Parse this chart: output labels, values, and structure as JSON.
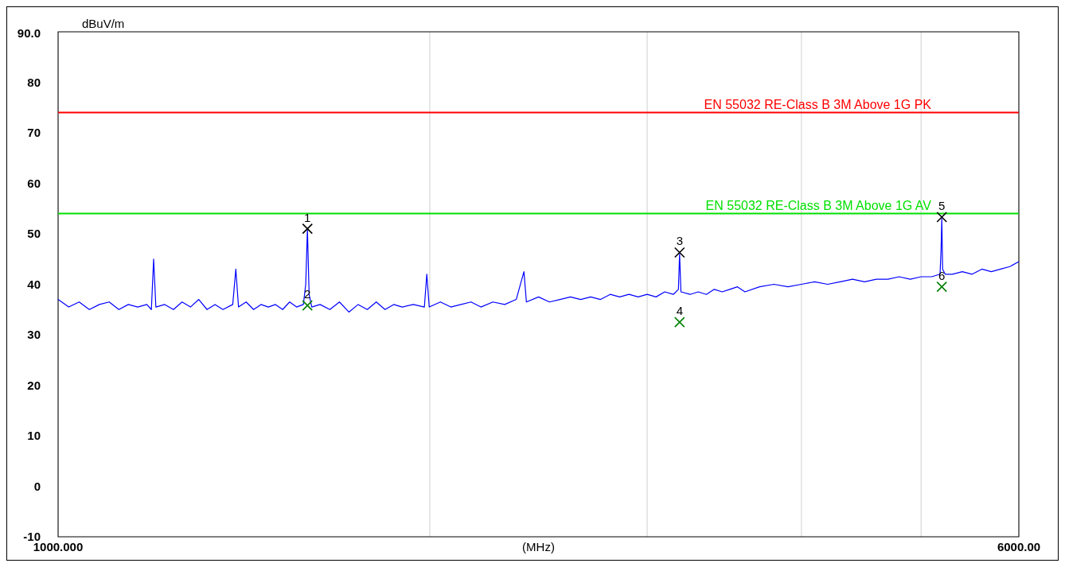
{
  "chart_data": {
    "type": "line",
    "xlabel": "(MHz)",
    "ylabel": "dBuV/m",
    "log": "x",
    "grid": "x",
    "xlim": [
      1000,
      6000
    ],
    "xticks": [
      {
        "value": 1000,
        "label": "1000.000"
      },
      {
        "value": 2000,
        "label": null
      },
      {
        "value": 3000,
        "label": null
      },
      {
        "value": 4000,
        "label": null
      },
      {
        "value": 5000,
        "label": null
      },
      {
        "value": 6000,
        "label": "6000.00"
      }
    ],
    "ylim": [
      -10,
      90
    ],
    "yticks": [
      -10,
      0,
      10,
      20,
      30,
      40,
      50,
      60,
      70,
      80,
      {
        "value": 90,
        "label": "90.0"
      }
    ],
    "series": [
      {
        "color": "#0000ff",
        "marker": "none",
        "x": [
          1000,
          1020,
          1040,
          1060,
          1080,
          1100,
          1120,
          1140,
          1160,
          1180,
          1190,
          1195,
          1200,
          1220,
          1240,
          1260,
          1280,
          1300,
          1320,
          1340,
          1360,
          1385,
          1393,
          1400,
          1420,
          1440,
          1460,
          1480,
          1500,
          1520,
          1540,
          1560,
          1580,
          1587,
          1592,
          1597,
          1605,
          1630,
          1660,
          1690,
          1720,
          1750,
          1780,
          1810,
          1840,
          1870,
          1900,
          1940,
          1980,
          1989,
          1998,
          2040,
          2080,
          2120,
          2160,
          2200,
          2250,
          2300,
          2350,
          2384,
          2395,
          2450,
          2500,
          2550,
          2600,
          2650,
          2700,
          2750,
          2800,
          2850,
          2900,
          2950,
          3000,
          3050,
          3100,
          3150,
          3180,
          3187,
          3195,
          3250,
          3300,
          3350,
          3400,
          3450,
          3500,
          3550,
          3600,
          3700,
          3800,
          3900,
          4000,
          4100,
          4200,
          4300,
          4400,
          4500,
          4600,
          4700,
          4800,
          4900,
          5000,
          5100,
          5180,
          5190,
          5197,
          5205,
          5230,
          5300,
          5400,
          5500,
          5600,
          5700,
          5800,
          5900,
          6000
        ],
        "values": [
          37,
          35.5,
          36.5,
          35,
          36,
          36.5,
          35,
          36,
          35.5,
          36,
          35,
          45,
          35.5,
          36,
          35,
          36.5,
          35.5,
          37,
          35,
          36,
          35,
          36,
          43,
          35.5,
          36.5,
          35,
          36,
          35.5,
          36,
          35,
          36.5,
          35.5,
          36,
          40,
          51,
          38,
          35.5,
          36,
          35,
          36.5,
          34.5,
          36,
          35,
          36.5,
          35,
          36,
          35.5,
          36,
          35.5,
          42,
          35.5,
          36.5,
          35.5,
          36,
          36.5,
          35.5,
          36.5,
          36,
          37,
          42.5,
          36.5,
          37.5,
          36.5,
          37,
          37.5,
          37,
          37.5,
          37,
          38,
          37.5,
          38,
          37.5,
          38,
          37.5,
          38.5,
          38,
          39,
          46,
          38.5,
          38,
          38.5,
          38,
          39,
          38.5,
          39,
          39.5,
          38.5,
          39.5,
          40,
          39.5,
          40,
          40.5,
          40,
          40.5,
          41,
          40.5,
          41,
          41,
          41.5,
          41,
          41.5,
          41.5,
          42,
          47,
          53,
          43,
          42,
          42,
          42.5,
          42,
          43,
          42.5,
          43,
          43.5,
          44.5
        ]
      },
      {
        "type": "scatter",
        "color": "#000000",
        "marker": "cross",
        "x": [
          1592,
          3187,
          5197
        ],
        "values": [
          51,
          46.3,
          53.3
        ]
      },
      {
        "type": "scatter",
        "color": "#008000",
        "marker": "cross",
        "x": [
          1592,
          3187,
          5197
        ],
        "values": [
          35.8,
          32.5,
          39.5
        ]
      }
    ],
    "ref_lines": [
      {
        "axis": "y",
        "value": 74,
        "label": "EN 55032 RE-Class B 3M Above 1G PK",
        "color": "#ff0000"
      },
      {
        "axis": "y",
        "value": 54,
        "label": "EN 55032 RE-Class B 3M Above 1G AV",
        "color": "#00e000"
      }
    ],
    "annotations": [
      {
        "text": "1",
        "x": 1592,
        "y": 51
      },
      {
        "text": "2",
        "x": 1592,
        "y": 35.8
      },
      {
        "text": "3",
        "x": 3187,
        "y": 46.3
      },
      {
        "text": "4",
        "x": 3187,
        "y": 32.5
      },
      {
        "text": "5",
        "x": 5197,
        "y": 53.3
      },
      {
        "text": "6",
        "x": 5197,
        "y": 39.5
      }
    ]
  }
}
